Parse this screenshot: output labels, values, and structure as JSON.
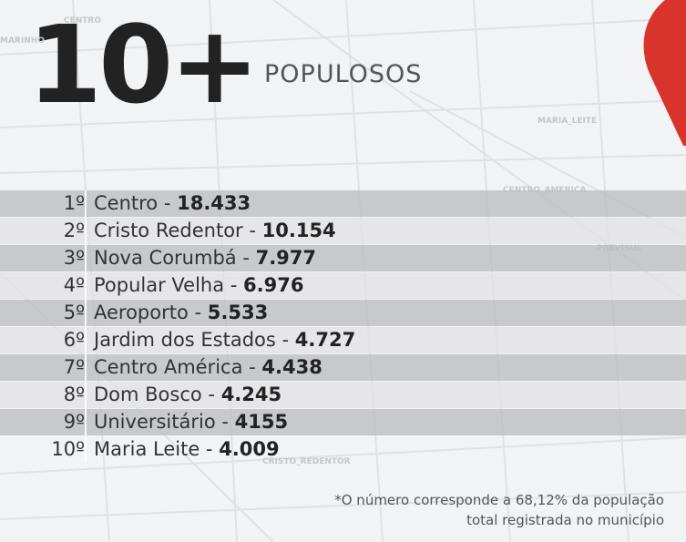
{
  "header": {
    "title": "10+",
    "subtitle": "POPULOSOS"
  },
  "map_labels": [
    "CENTRO",
    "MARINHO",
    "MARIA_LEITE",
    "CENTRO_AMERICA",
    "PREVISUL",
    "CRISTO_REDENTOR"
  ],
  "rows": [
    {
      "rank": "1º",
      "name": "Centro -",
      "value": "18.433"
    },
    {
      "rank": "2º",
      "name": "Cristo Redentor -",
      "value": "10.154"
    },
    {
      "rank": "3º",
      "name": "Nova Corumbá -",
      "value": "7.977"
    },
    {
      "rank": "4º",
      "name": "Popular Velha -",
      "value": "6.976"
    },
    {
      "rank": "5º",
      "name": "Aeroporto -",
      "value": "5.533"
    },
    {
      "rank": "6º",
      "name": "Jardim dos Estados -",
      "value": "4.727"
    },
    {
      "rank": "7º",
      "name": "Centro América -",
      "value": "4.438"
    },
    {
      "rank": "8º",
      "name": "Dom Bosco -",
      "value": "4.245"
    },
    {
      "rank": "9º",
      "name": "Universitário -",
      "value": "4155"
    },
    {
      "rank": "10º",
      "name": "Maria Leite -",
      "value": "4.009"
    }
  ],
  "footnote": [
    "*O número corresponde a 68,12% da população",
    "total registrada no município"
  ]
}
